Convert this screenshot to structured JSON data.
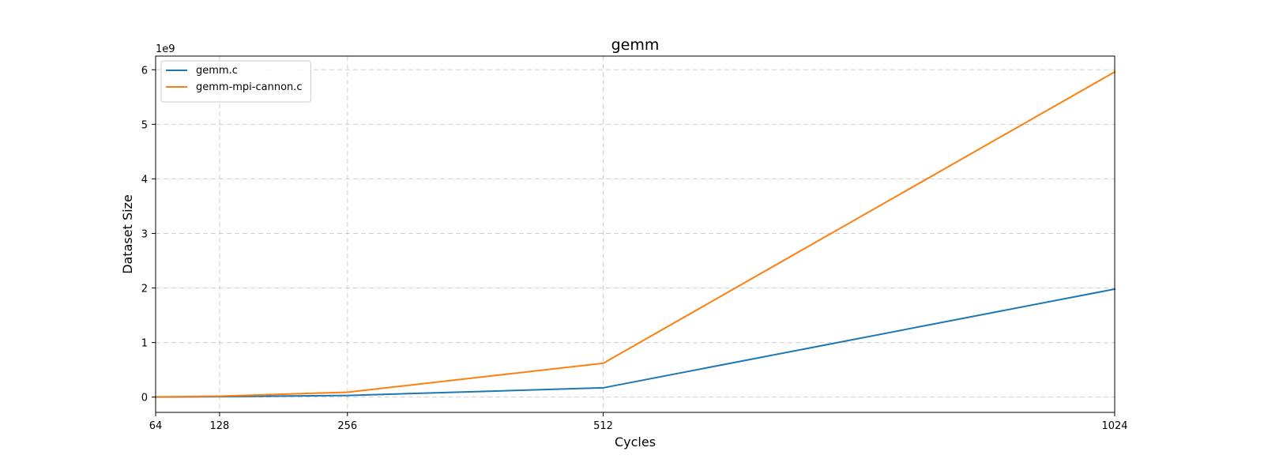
{
  "chart_data": {
    "type": "line",
    "title": "gemm",
    "xlabel": "Cycles",
    "ylabel": "Dataset Size",
    "y_offset_label": "1e9",
    "x_ticks": [
      64,
      128,
      256,
      512,
      1024
    ],
    "x_tick_labels": [
      "64",
      "128",
      "256",
      "512",
      "1024"
    ],
    "y_ticks": [
      0,
      1,
      2,
      3,
      4,
      5,
      6
    ],
    "y_tick_labels": [
      "0",
      "1",
      "2",
      "3",
      "4",
      "5",
      "6"
    ],
    "xlim": [
      64,
      1024
    ],
    "ylim": [
      -0.28,
      6.25
    ],
    "y_unit_multiplier": 1000000000,
    "grid": true,
    "legend_position": "top-left",
    "x": [
      64,
      128,
      256,
      512,
      1024
    ],
    "series": [
      {
        "name": "gemm.c",
        "color": "#1f77b4",
        "values": [
          0.0013,
          0.0085,
          0.03,
          0.17,
          1.98
        ]
      },
      {
        "name": "gemm-mpi-cannon.c",
        "color": "#ff7f0e",
        "values": [
          0.004,
          0.016,
          0.09,
          0.62,
          5.96
        ]
      }
    ]
  }
}
